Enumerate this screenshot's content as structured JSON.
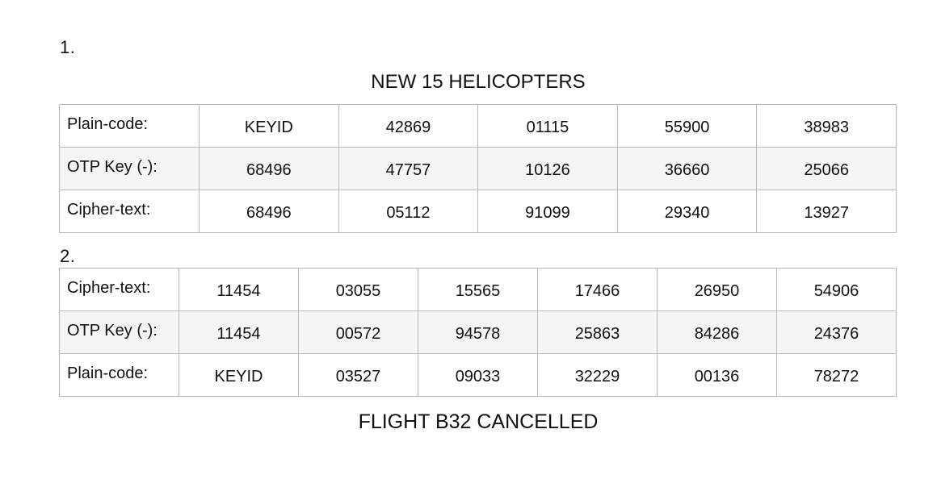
{
  "section1": {
    "number": "1.",
    "caption": "NEW 15 HELICOPTERS",
    "rows": [
      {
        "label": "Plain-code:",
        "values": [
          "KEYID",
          "42869",
          "01115",
          "55900",
          "38983"
        ]
      },
      {
        "label": "OTP Key (-):",
        "values": [
          "68496",
          "47757",
          "10126",
          "36660",
          "25066"
        ]
      },
      {
        "label": "Cipher-text:",
        "values": [
          "68496",
          "05112",
          "91099",
          "29340",
          "13927"
        ]
      }
    ]
  },
  "section2": {
    "number": "2.",
    "caption": "FLIGHT B32 CANCELLED",
    "rows": [
      {
        "label": "Cipher-text:",
        "values": [
          "11454",
          "03055",
          "15565",
          "17466",
          "26950",
          "54906"
        ]
      },
      {
        "label": "OTP Key (-):",
        "values": [
          "11454",
          "00572",
          "94578",
          "25863",
          "84286",
          "24376"
        ]
      },
      {
        "label": "Plain-code:",
        "values": [
          "KEYID",
          "03527",
          "09033",
          "32229",
          "00136",
          "78272"
        ]
      }
    ]
  }
}
